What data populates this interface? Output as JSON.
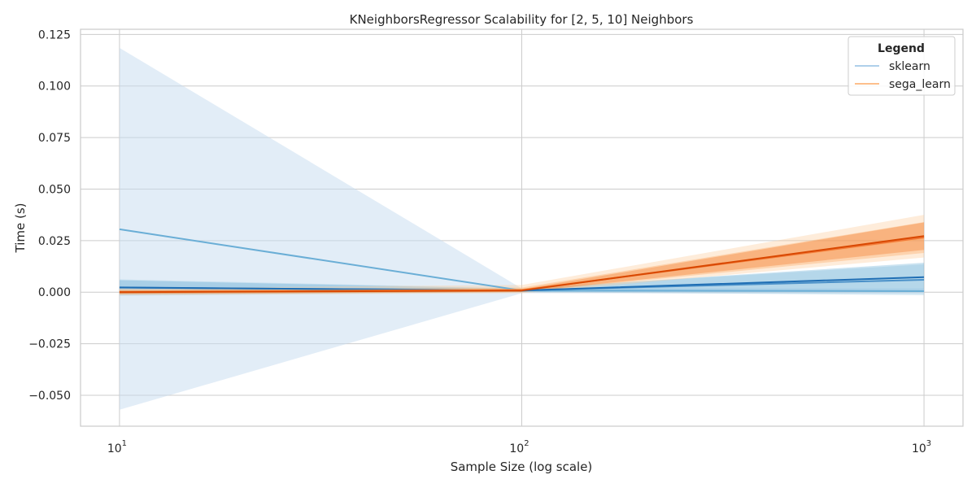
{
  "chart_data": {
    "type": "line",
    "title": "KNeighborsRegressor Scalability for [2, 5, 10] Neighbors",
    "xlabel": "Sample Size (log scale)",
    "ylabel": "Time (s)",
    "x_scale": "log",
    "x": [
      10,
      100,
      1000
    ],
    "xlim": [
      8.0,
      1250
    ],
    "ylim": [
      -0.065,
      0.1275
    ],
    "x_ticks": [
      {
        "value": 10,
        "base": "10",
        "exp": "1"
      },
      {
        "value": 100,
        "base": "10",
        "exp": "2"
      },
      {
        "value": 1000,
        "base": "10",
        "exp": "3"
      }
    ],
    "y_ticks": [
      {
        "value": -0.05,
        "label": "−0.050"
      },
      {
        "value": -0.025,
        "label": "−0.025"
      },
      {
        "value": 0.0,
        "label": "0.000"
      },
      {
        "value": 0.025,
        "label": "0.025"
      },
      {
        "value": 0.05,
        "label": "0.050"
      },
      {
        "value": 0.075,
        "label": "0.075"
      },
      {
        "value": 0.1,
        "label": "0.100"
      },
      {
        "value": 0.125,
        "label": "0.125"
      }
    ],
    "grid": true,
    "legend": {
      "title": "Legend",
      "placement": "top-right",
      "entries": [
        {
          "label": "sklearn",
          "color": "#aed0ea"
        },
        {
          "label": "sega_learn",
          "color": "#fdbf8c"
        }
      ]
    },
    "series": [
      {
        "group": "sklearn",
        "color": "#6aaed6",
        "band_color": "#c6dbef",
        "band_opacity": 0.5,
        "values": [
          0.0305,
          0.0008,
          0.0005
        ],
        "lower": [
          -0.057,
          -0.0005,
          -0.0008
        ],
        "upper": [
          0.1185,
          0.0018,
          0.0018
        ]
      },
      {
        "group": "sklearn",
        "color": "#4a90c8",
        "band_color": "#9ecae1",
        "band_opacity": 0.35,
        "values": [
          0.0022,
          0.0009,
          0.006
        ],
        "lower": [
          -0.0018,
          0.0001,
          -0.0015
        ],
        "upper": [
          0.0062,
          0.0018,
          0.0135
        ]
      },
      {
        "group": "sklearn",
        "color": "#1f6eb4",
        "band_color": "#6baed6",
        "band_opacity": 0.35,
        "values": [
          0.0023,
          0.0008,
          0.0073
        ],
        "lower": [
          -0.0012,
          0.0001,
          0.0005
        ],
        "upper": [
          0.0058,
          0.0016,
          0.0143
        ]
      },
      {
        "group": "sega_learn",
        "color": "#fdae6b",
        "band_color": "#fdd0a2",
        "band_opacity": 0.4,
        "values": [
          0.0002,
          0.0012,
          0.0262
        ],
        "lower": [
          -0.0015,
          -0.0005,
          0.0168
        ],
        "upper": [
          0.0019,
          0.0035,
          0.0375
        ]
      },
      {
        "group": "sega_learn",
        "color": "#f0793a",
        "band_color": "#fdae6b",
        "band_opacity": 0.4,
        "values": [
          0.0001,
          0.001,
          0.0265
        ],
        "lower": [
          -0.001,
          0.0,
          0.019
        ],
        "upper": [
          0.0012,
          0.0022,
          0.034
        ]
      },
      {
        "group": "sega_learn",
        "color": "#d94801",
        "band_color": "#f16913",
        "band_opacity": 0.3,
        "values": [
          0.0,
          0.0008,
          0.0272
        ],
        "lower": [
          -0.0008,
          0.0001,
          0.0205
        ],
        "upper": [
          0.0008,
          0.0015,
          0.0338
        ]
      }
    ]
  }
}
